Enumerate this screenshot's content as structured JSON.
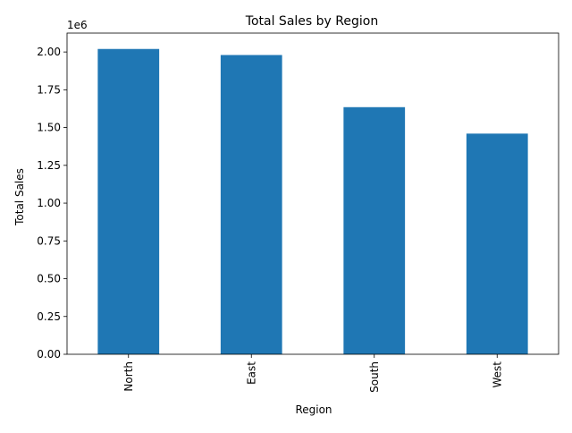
{
  "chart_data": {
    "type": "bar",
    "title": "Total Sales by Region",
    "xlabel": "Region",
    "ylabel": "Total Sales",
    "offset_label": "1e6",
    "categories": [
      "North",
      "East",
      "South",
      "West"
    ],
    "values": [
      2020000,
      1980000,
      1635000,
      1460000
    ],
    "ylim": [
      0,
      2125000
    ],
    "yticks": [
      0,
      250000,
      500000,
      750000,
      1000000,
      1250000,
      1500000,
      1750000,
      2000000
    ],
    "ytick_labels": [
      "0.00",
      "0.25",
      "0.50",
      "0.75",
      "1.00",
      "1.25",
      "1.50",
      "1.75",
      "2.00"
    ],
    "bar_color": "#1f77b4",
    "grid": false,
    "legend": "none"
  }
}
